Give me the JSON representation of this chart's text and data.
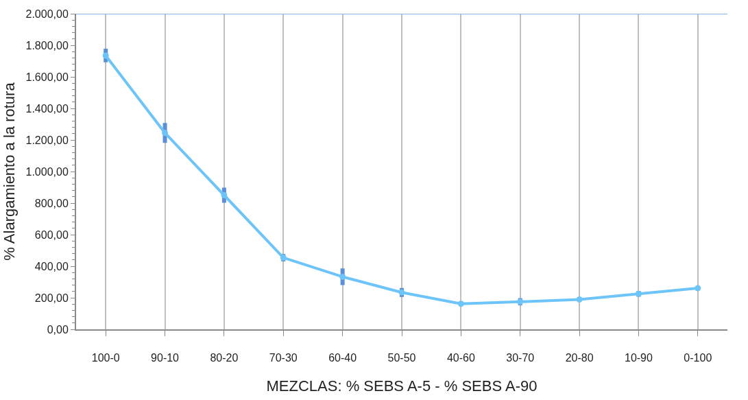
{
  "chart_data": {
    "type": "line",
    "ylabel": "% Alargamiento a la rotura",
    "xlabel": "MEZCLAS: % SEBS A-5 - % SEBS A-90",
    "categories": [
      "100-0",
      "90-10",
      "80-20",
      "70-30",
      "60-40",
      "50-50",
      "40-60",
      "30-70",
      "20-80",
      "10-90",
      "0-100"
    ],
    "series": [
      {
        "color": "#6cc4f8",
        "values": [
          1735,
          1245,
          850,
          454,
          333,
          234,
          162,
          175,
          189,
          225,
          261
        ],
        "errors": [
          30,
          50,
          35,
          10,
          40,
          15,
          null,
          10,
          null,
          5,
          null
        ]
      }
    ],
    "ylim": [
      0,
      2000
    ],
    "yticks": [
      {
        "value": 0,
        "label": "0,00"
      },
      {
        "value": 200,
        "label": "200,00"
      },
      {
        "value": 400,
        "label": "400,00"
      },
      {
        "value": 600,
        "label": "600,00"
      },
      {
        "value": 800,
        "label": "800,00"
      },
      {
        "value": 1000,
        "label": "1.000,00"
      },
      {
        "value": 1200,
        "label": "1.200,00"
      },
      {
        "value": 1400,
        "label": "1.400,00"
      },
      {
        "value": 1600,
        "label": "1.600,00"
      },
      {
        "value": 1800,
        "label": "1.800,00"
      },
      {
        "value": 2000,
        "label": "2.000,00"
      }
    ],
    "grid": "x",
    "marker": "circle",
    "line_style": "solid"
  }
}
